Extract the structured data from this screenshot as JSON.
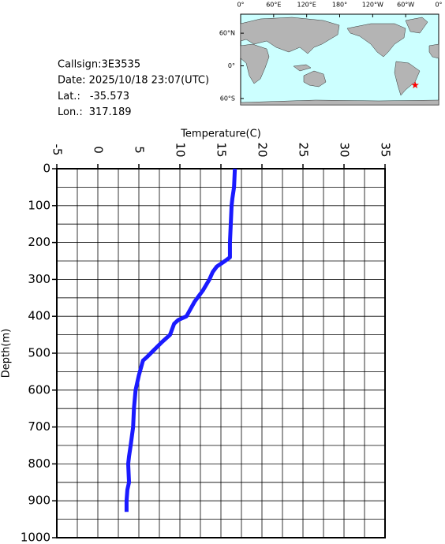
{
  "chart_data": {
    "type": "line",
    "xlabel": "Temperature(C)",
    "ylabel": "Depth(m)",
    "xlim": [
      -5,
      35
    ],
    "xticks": [
      -5,
      0,
      5,
      10,
      15,
      20,
      25,
      30,
      35
    ],
    "ylim": [
      0,
      1000
    ],
    "yticks": [
      0,
      100,
      200,
      300,
      400,
      500,
      600,
      700,
      800,
      900,
      1000
    ],
    "y_inverted": true,
    "grid": true,
    "color": "#1a1aff",
    "temperature": [
      16.7,
      16.6,
      16.4,
      16.3,
      16.2,
      16.1,
      16.1,
      15.5,
      14.5,
      14.0,
      13.6,
      12.8,
      11.8,
      11.3,
      10.8,
      9.8,
      9.3,
      8.8,
      7.8,
      6.9,
      6.0,
      5.5,
      5.0,
      4.6,
      4.4,
      4.3,
      4.0,
      3.8,
      3.7,
      3.8,
      3.6,
      3.5,
      3.5
    ],
    "depth": [
      0,
      50,
      80,
      100,
      150,
      200,
      240,
      250,
      265,
      280,
      300,
      330,
      360,
      380,
      400,
      410,
      420,
      450,
      470,
      490,
      510,
      520,
      560,
      600,
      650,
      700,
      750,
      780,
      800,
      850,
      870,
      900,
      930
    ]
  },
  "info": {
    "callsign": "Callsign:3E3535",
    "date": "Date:  2025/10/18 23:07(UTC)",
    "lat_label": "Lat.:",
    "lat": -35.573,
    "lon_label": "Lon.:",
    "lon": 317.189
  },
  "map": {
    "lon_ticks": [
      {
        "value": 0,
        "label": "0°"
      },
      {
        "value": 60,
        "label": "60°E"
      },
      {
        "value": 120,
        "label": "120°E"
      },
      {
        "value": 180,
        "label": "180°"
      },
      {
        "value": 240,
        "label": "120°W"
      },
      {
        "value": 300,
        "label": "60°W"
      },
      {
        "value": 360,
        "label": "0°"
      }
    ],
    "lat_ticks": [
      {
        "value": 60,
        "label": "60°N"
      },
      {
        "value": 0,
        "label": "0°"
      },
      {
        "value": -60,
        "label": "60°S"
      }
    ],
    "marker_color": "#ff0000"
  }
}
